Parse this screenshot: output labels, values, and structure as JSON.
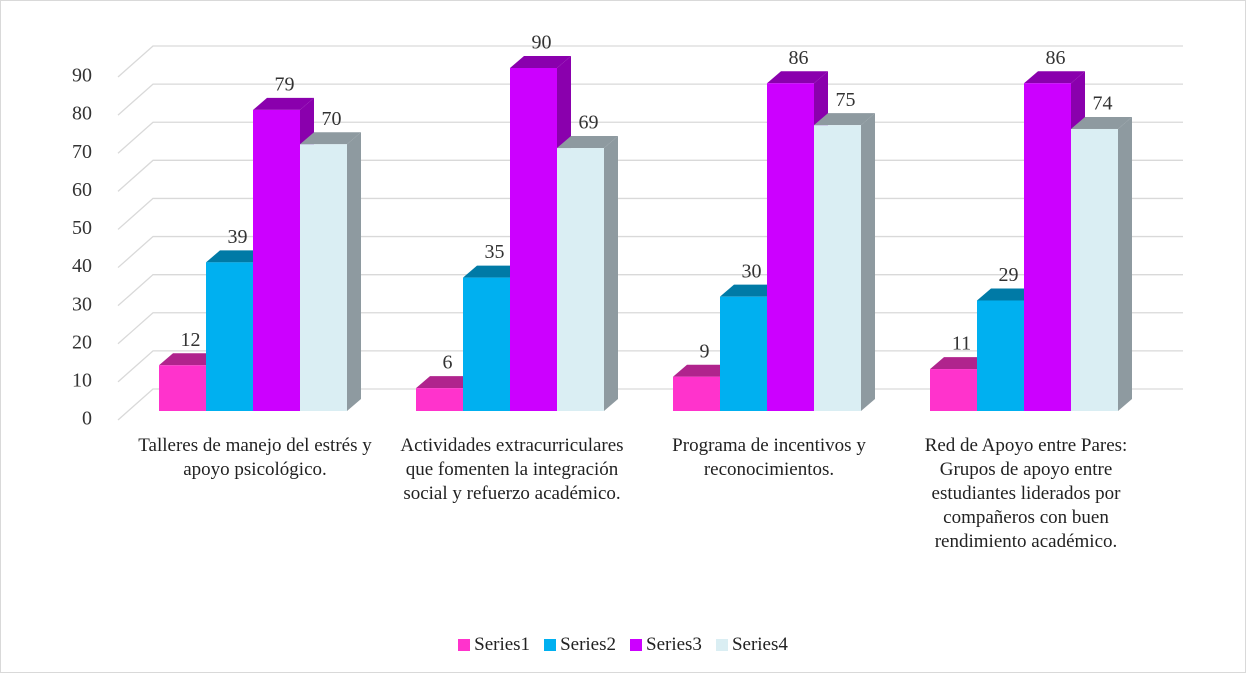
{
  "chart_data": {
    "type": "bar3d",
    "categories": [
      "Talleres de manejo del estrés y apoyo psicológico.",
      "Actividades extracurriculares que fomenten la integración social y  refuerzo académico.",
      "Programa de incentivos y reconocimientos.",
      "Red de Apoyo entre Pares: Grupos de apoyo entre estudiantes liderados por compañeros con buen rendimiento académico."
    ],
    "series": [
      {
        "name": "Series1",
        "color": "#ff33cc",
        "side": "#b0248d",
        "values": [
          12,
          6,
          9,
          11
        ]
      },
      {
        "name": "Series2",
        "color": "#00b0f0",
        "side": "#007aa6",
        "values": [
          39,
          35,
          30,
          29
        ]
      },
      {
        "name": "Series3",
        "color": "#cc00ff",
        "side": "#8a00ad",
        "values": [
          79,
          90,
          86,
          86
        ]
      },
      {
        "name": "Series4",
        "color": "#daeef3",
        "side": "#8e9aa0",
        "values": [
          70,
          69,
          75,
          74
        ]
      }
    ],
    "ylim": [
      0,
      90
    ],
    "yticks": [
      0,
      10,
      20,
      30,
      40,
      50,
      60,
      70,
      80,
      90
    ],
    "grid": true,
    "legend": "bottom"
  }
}
